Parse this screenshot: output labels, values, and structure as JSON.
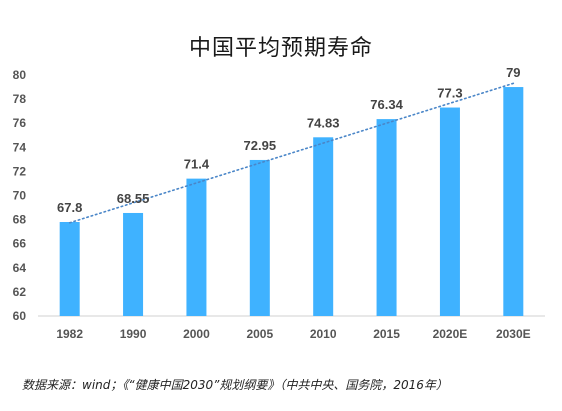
{
  "chart_data": {
    "type": "bar",
    "title": "中国平均预期寿命",
    "categories": [
      "1982",
      "1990",
      "2000",
      "2005",
      "2010",
      "2015",
      "2020E",
      "2030E"
    ],
    "values": [
      67.8,
      68.55,
      71.4,
      72.95,
      74.83,
      76.34,
      77.3,
      79
    ],
    "value_labels": [
      "67.8",
      "68.55",
      "71.4",
      "72.95",
      "74.83",
      "76.34",
      "77.3",
      "79"
    ],
    "yticks": [
      "60",
      "62",
      "64",
      "66",
      "68",
      "70",
      "72",
      "74",
      "76",
      "78",
      "80"
    ],
    "ylim": [
      60,
      80
    ],
    "xlabel": "",
    "ylabel": "",
    "grid": false,
    "legend": "none",
    "trendline": "linear dotted",
    "colors": {
      "bar": "#3fb2ff",
      "trendline": "#4a86c8",
      "axis": "#d0d0d0"
    }
  },
  "source": "数据来源：wind；《“健康中国2030”规划纲要》（中共中央、国务院，2016年）"
}
